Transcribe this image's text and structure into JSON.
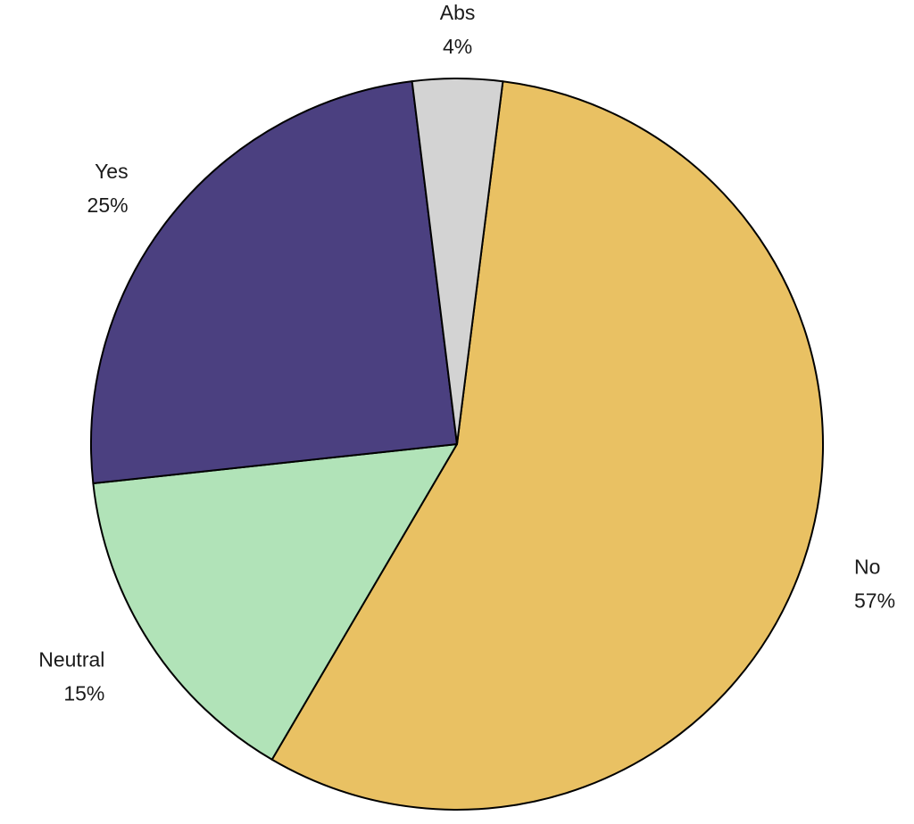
{
  "chart_data": {
    "type": "pie",
    "slices": [
      {
        "label": "No",
        "value": 57,
        "value_label": "57%",
        "color": "#E9C163"
      },
      {
        "label": "Neutral",
        "value": 15,
        "value_label": "15%",
        "color": "#B1E3B8"
      },
      {
        "label": "Yes",
        "value": 25,
        "value_label": "25%",
        "color": "#4B4080"
      },
      {
        "label": "Abs",
        "value": 4,
        "value_label": "4%",
        "color": "#D3D3D3"
      }
    ],
    "legend": "none",
    "labels": "outside"
  }
}
